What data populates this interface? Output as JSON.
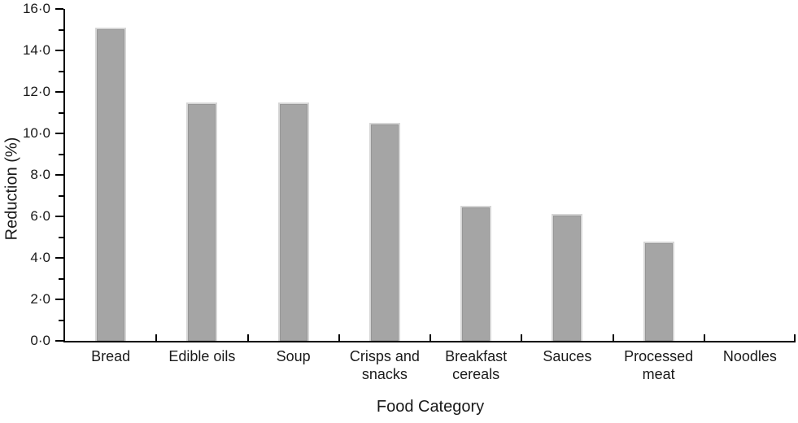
{
  "chart_data": {
    "type": "bar",
    "title": "",
    "xlabel": "Food Category",
    "ylabel": "Reduction (%)",
    "categories": [
      "Bread",
      "Edible oils",
      "Soup",
      "Crisps and snacks",
      "Breakfast cereals",
      "Sauces",
      "Processed meat",
      "Noodles"
    ],
    "values": [
      15.1,
      11.5,
      11.5,
      10.5,
      6.5,
      6.1,
      4.8,
      0
    ],
    "ylim": [
      0,
      16
    ],
    "ytick_interval": 2,
    "ytick_labels": [
      "0·0",
      "2·0",
      "4·0",
      "6·0",
      "8·0",
      "10·0",
      "12·0",
      "14·0",
      "16·0"
    ],
    "minor_ticks_every": 1,
    "grid": false,
    "legend": "none",
    "bar_color": "#a5a5a5",
    "bar_edge_color": "#969696",
    "axis_color": "#000000",
    "text_color": "#1a1a1a"
  }
}
